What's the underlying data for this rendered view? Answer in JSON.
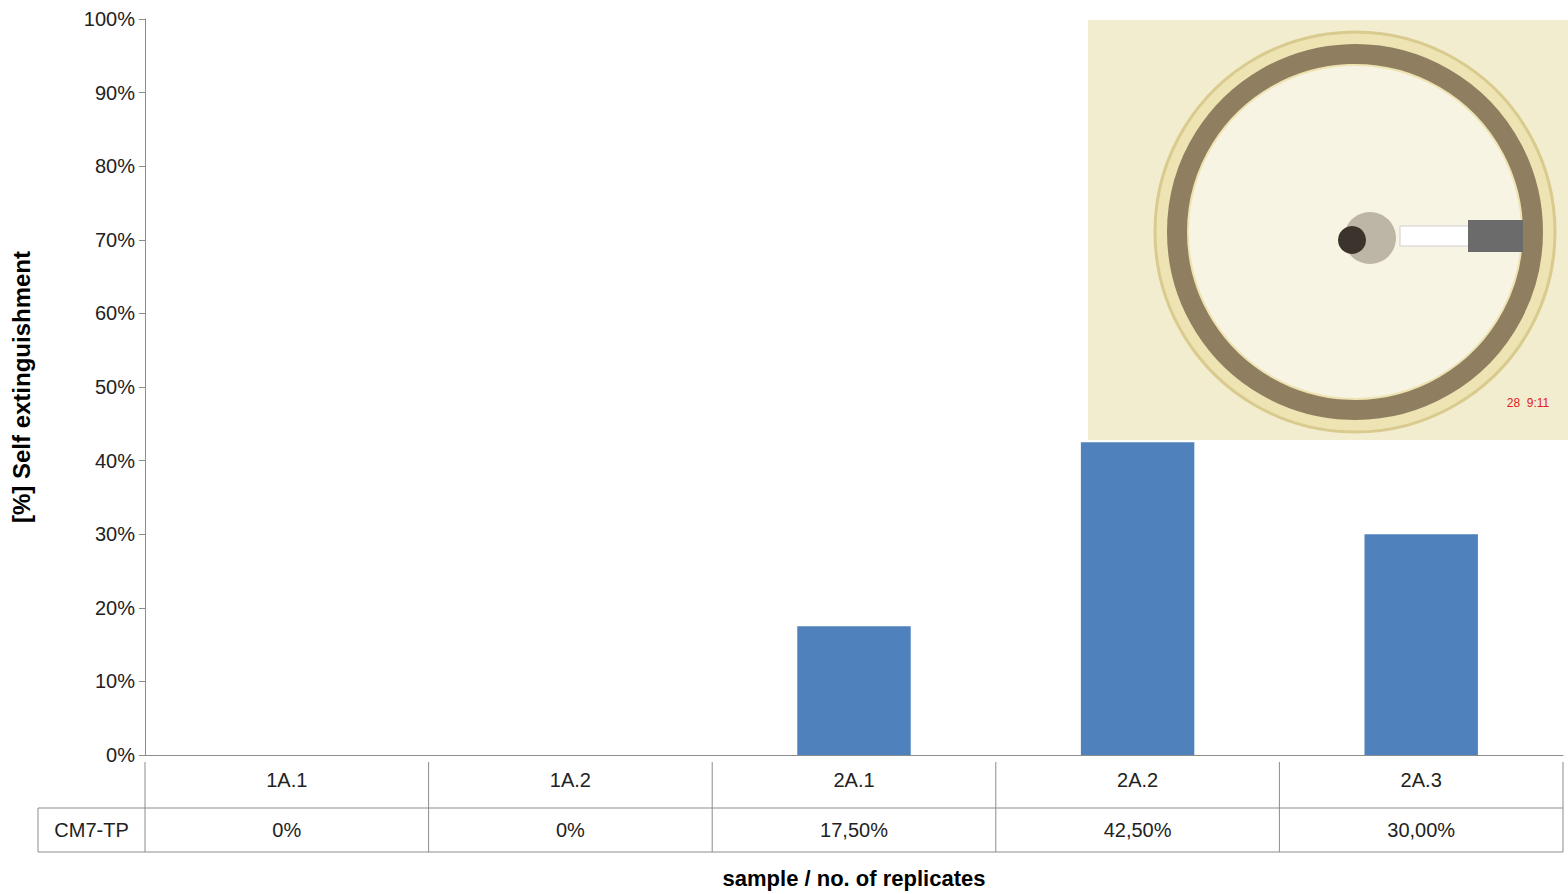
{
  "chart_data": {
    "type": "bar",
    "y_label": "[%] Self extinguishment",
    "x_label": "sample / no. of replicates",
    "categories": [
      "1A.1",
      "1A.2",
      "2A.1",
      "2A.2",
      "2A.3"
    ],
    "series": [
      {
        "name": "CM7-TP",
        "color": "#4f81bd",
        "values": [
          0,
          0,
          17.5,
          42.5,
          30
        ],
        "value_labels": [
          "0%",
          "0%",
          "17,50%",
          "42,50%",
          "30,00%"
        ]
      }
    ],
    "ylim": [
      0,
      100
    ],
    "yticks": [
      {
        "value": 0,
        "label": "0%"
      },
      {
        "value": 10,
        "label": "10%"
      },
      {
        "value": 20,
        "label": "20%"
      },
      {
        "value": 30,
        "label": "30%"
      },
      {
        "value": 40,
        "label": "40%"
      },
      {
        "value": 50,
        "label": "50%"
      },
      {
        "value": 60,
        "label": "60%"
      },
      {
        "value": 70,
        "label": "70%"
      },
      {
        "value": 80,
        "label": "80%"
      },
      {
        "value": 90,
        "label": "90%"
      },
      {
        "value": 100,
        "label": "100%"
      }
    ],
    "grid": false,
    "annotations": [
      "28  9:11"
    ]
  }
}
